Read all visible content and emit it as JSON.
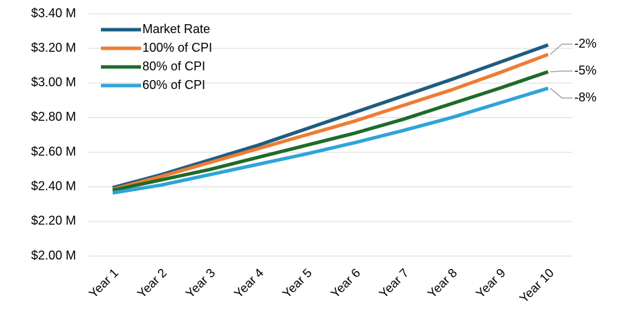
{
  "chart_data": {
    "type": "line",
    "categories": [
      "Year 1",
      "Year 2",
      "Year 3",
      "Year 4",
      "Year 5",
      "Year 6",
      "Year 7",
      "Year 8",
      "Year 9",
      "Year 10"
    ],
    "series": [
      {
        "name": "Market Rate",
        "color": "#1f5c80",
        "values": [
          2.395,
          2.47,
          2.555,
          2.64,
          2.735,
          2.83,
          2.925,
          3.02,
          3.12,
          3.22
        ]
      },
      {
        "name": "100% of CPI",
        "color": "#ed7d31",
        "values": [
          2.385,
          2.46,
          2.54,
          2.62,
          2.7,
          2.78,
          2.87,
          2.96,
          3.06,
          3.165
        ]
      },
      {
        "name": "80% of CPI",
        "color": "#1e6b2a",
        "values": [
          2.38,
          2.44,
          2.5,
          2.57,
          2.64,
          2.71,
          2.79,
          2.88,
          2.97,
          3.065
        ]
      },
      {
        "name": "60% of CPI",
        "color": "#2ea4d8",
        "values": [
          2.365,
          2.41,
          2.47,
          2.53,
          2.59,
          2.655,
          2.725,
          2.8,
          2.885,
          2.97
        ]
      }
    ],
    "annotations": [
      "-2%",
      "-5%",
      "-8%"
    ],
    "ylim": [
      2.0,
      3.4
    ],
    "yticks": [
      {
        "value": 2.0,
        "label": "$2.00 M"
      },
      {
        "value": 2.2,
        "label": "$2.20 M"
      },
      {
        "value": 2.4,
        "label": "$2.40 M"
      },
      {
        "value": 2.6,
        "label": "$2.60 M"
      },
      {
        "value": 2.8,
        "label": "$2.80 M"
      },
      {
        "value": 3.0,
        "label": "$3.00 M"
      },
      {
        "value": 3.2,
        "label": "$3.20 M"
      },
      {
        "value": 3.4,
        "label": "$3.40 M"
      }
    ],
    "grid": true,
    "legend": "upper left"
  }
}
